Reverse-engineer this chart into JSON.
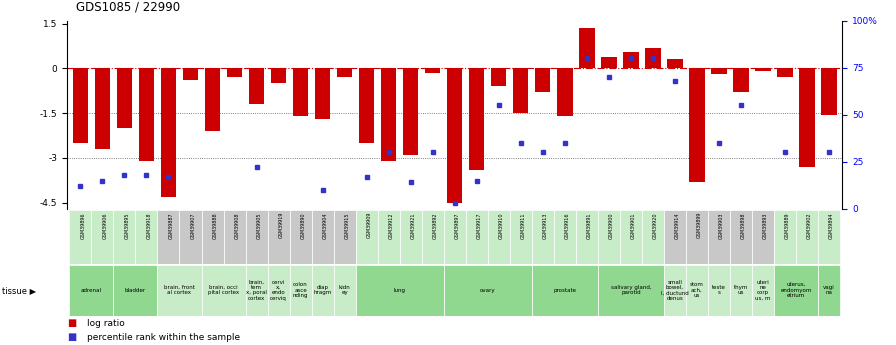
{
  "title": "GDS1085 / 22990",
  "samples": [
    "GSM39896",
    "GSM39906",
    "GSM39895",
    "GSM39918",
    "GSM39887",
    "GSM39907",
    "GSM39888",
    "GSM39908",
    "GSM39905",
    "GSM39919",
    "GSM39890",
    "GSM39904",
    "GSM39915",
    "GSM39909",
    "GSM39912",
    "GSM39921",
    "GSM39892",
    "GSM39897",
    "GSM39917",
    "GSM39910",
    "GSM39911",
    "GSM39913",
    "GSM39916",
    "GSM39891",
    "GSM39900",
    "GSM39901",
    "GSM39920",
    "GSM39914",
    "GSM39899",
    "GSM39903",
    "GSM39898",
    "GSM39893",
    "GSM39889",
    "GSM39902",
    "GSM39894"
  ],
  "log_ratio": [
    -2.5,
    -2.7,
    -2.0,
    -3.1,
    -4.3,
    -0.4,
    -2.1,
    -0.3,
    -1.2,
    -0.5,
    -1.6,
    -1.7,
    -0.3,
    -2.5,
    -3.1,
    -2.9,
    -0.15,
    -4.5,
    -3.4,
    -0.6,
    -1.5,
    -0.8,
    -1.6,
    1.35,
    0.4,
    0.55,
    0.7,
    0.3,
    -3.8,
    -0.2,
    -0.8,
    -0.1,
    -0.3,
    -3.3,
    -1.55
  ],
  "percentile_rank": [
    12,
    15,
    18,
    18,
    17,
    null,
    null,
    null,
    22,
    null,
    null,
    10,
    null,
    17,
    30,
    14,
    30,
    3,
    15,
    55,
    35,
    30,
    35,
    80,
    70,
    80,
    80,
    68,
    null,
    35,
    55,
    null,
    30,
    null,
    30
  ],
  "tissues": [
    {
      "label": "adrenal",
      "start": 0,
      "end": 2,
      "green": true
    },
    {
      "label": "bladder",
      "start": 2,
      "end": 4,
      "green": true
    },
    {
      "label": "brain, front\nal cortex",
      "start": 4,
      "end": 6,
      "green": false
    },
    {
      "label": "brain, occi\npital cortex",
      "start": 6,
      "end": 8,
      "green": false
    },
    {
      "label": "brain,\ntem\nx, poral\ncortex",
      "start": 8,
      "end": 9,
      "green": false
    },
    {
      "label": "cervi\nx,\nendo\ncerviq",
      "start": 9,
      "end": 10,
      "green": false
    },
    {
      "label": "colon\nasce\nnding",
      "start": 10,
      "end": 11,
      "green": false
    },
    {
      "label": "diap\nhragm",
      "start": 11,
      "end": 12,
      "green": false
    },
    {
      "label": "kidn\ney",
      "start": 12,
      "end": 13,
      "green": false
    },
    {
      "label": "lung",
      "start": 13,
      "end": 17,
      "green": true
    },
    {
      "label": "ovary",
      "start": 17,
      "end": 21,
      "green": true
    },
    {
      "label": "prostate",
      "start": 21,
      "end": 24,
      "green": true
    },
    {
      "label": "salivary gland,\nparotid",
      "start": 24,
      "end": 27,
      "green": true
    },
    {
      "label": "small\nbowel,\nI, ductund\ndenus",
      "start": 27,
      "end": 28,
      "green": false
    },
    {
      "label": "stom\nach,\nus",
      "start": 28,
      "end": 29,
      "green": false
    },
    {
      "label": "teste\ns",
      "start": 29,
      "end": 30,
      "green": false
    },
    {
      "label": "thym\nus",
      "start": 30,
      "end": 31,
      "green": false
    },
    {
      "label": "uteri\nne\ncorp\nus, m",
      "start": 31,
      "end": 32,
      "green": false
    },
    {
      "label": "uterus,\nendomyom\netrium",
      "start": 32,
      "end": 34,
      "green": true
    },
    {
      "label": "vagi\nna",
      "start": 34,
      "end": 35,
      "green": true
    }
  ],
  "ylim": [
    -4.7,
    1.6
  ],
  "bar_color": "#cc0000",
  "dot_color": "#3333cc",
  "hline_color": "#cc0000",
  "grid_color": "#555555",
  "bg_color": "#ffffff",
  "gray_cell": "#c8c8c8",
  "green_cell_light": "#c8ecc8",
  "green_cell_dark": "#90d890"
}
